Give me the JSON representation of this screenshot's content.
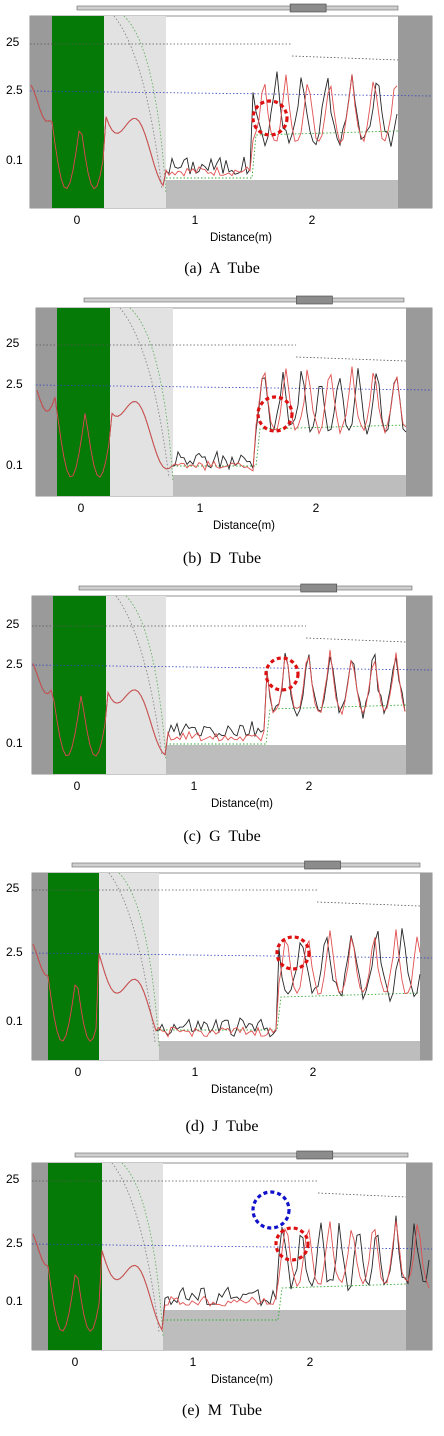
{
  "figure": {
    "subplot_labels": [
      "(a)",
      "(b)",
      "(c)",
      "(d)",
      "(e)"
    ]
  },
  "colors": {
    "sensor_band": "#067a06",
    "light_region": "#e2e2e2",
    "dark_region": "#9a9a9a",
    "floor": "#bdbdbd",
    "black_trace": "#262626",
    "red_trace": "#e05050",
    "circle_red": "#dd1111",
    "circle_blue": "#1111cc"
  },
  "chart_data": [
    {
      "type": "line",
      "name": "A Tube",
      "caption_label": "(a)",
      "caption_text": "A  Tube",
      "xlabel": "Distance(m)",
      "x_ticks": [
        "0",
        "1",
        "2"
      ],
      "y_ticks": [
        "25",
        "2.5",
        "0.1"
      ],
      "xlim": [
        -0.4,
        2.9
      ],
      "highlights": [
        {
          "color": "red",
          "x": 1.65
        }
      ]
    },
    {
      "type": "line",
      "name": "D Tube",
      "caption_label": "(b)",
      "caption_text": "D  Tube",
      "xlabel": "Distance(m)",
      "x_ticks": [
        "0",
        "1",
        "2"
      ],
      "y_ticks": [
        "25",
        "2.5",
        "0.1"
      ],
      "xlim": [
        -0.4,
        2.9
      ],
      "highlights": [
        {
          "color": "red",
          "x": 1.6
        }
      ]
    },
    {
      "type": "line",
      "name": "G Tube",
      "caption_label": "(c)",
      "caption_text": "G  Tube",
      "xlabel": "Distance(m)",
      "x_ticks": [
        "0",
        "1",
        "2"
      ],
      "y_ticks": [
        "25",
        "2.5",
        "0.1"
      ],
      "xlim": [
        -0.4,
        2.9
      ],
      "highlights": [
        {
          "color": "red",
          "x": 1.75
        }
      ]
    },
    {
      "type": "line",
      "name": "J Tube",
      "caption_label": "(d)",
      "caption_text": "J  Tube",
      "xlabel": "Distance(m)",
      "x_ticks": [
        "0",
        "1",
        "2"
      ],
      "y_ticks": [
        "25",
        "2.5",
        "0.1"
      ],
      "xlim": [
        -0.4,
        2.9
      ],
      "highlights": [
        {
          "color": "red",
          "x": 1.8
        }
      ]
    },
    {
      "type": "line",
      "name": "M Tube",
      "caption_label": "(e)",
      "caption_text": "M  Tube",
      "xlabel": "Distance(m)",
      "x_ticks": [
        "0",
        "1",
        "2"
      ],
      "y_ticks": [
        "25",
        "2.5",
        "0.1"
      ],
      "xlim": [
        -0.4,
        2.9
      ],
      "highlights": [
        {
          "color": "blue",
          "x": 1.7
        },
        {
          "color": "red",
          "x": 1.8
        }
      ]
    }
  ]
}
